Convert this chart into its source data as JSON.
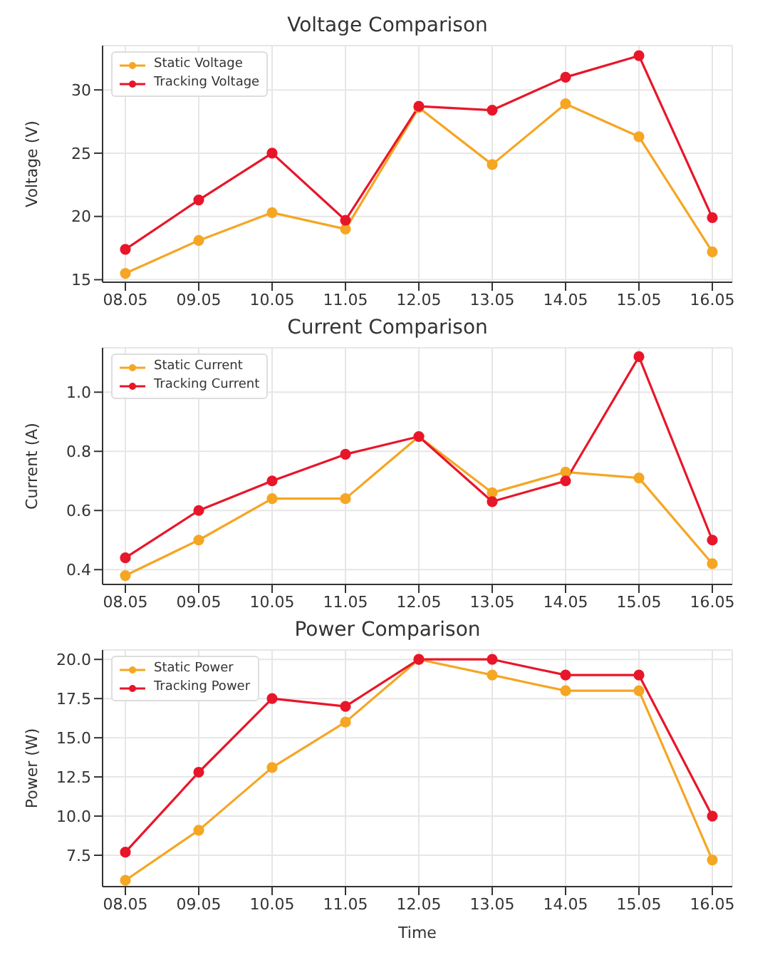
{
  "chart_data": [
    {
      "type": "line",
      "title": "Voltage Comparison",
      "ylabel": "Voltage (V)",
      "categories": [
        "08.05",
        "09.05",
        "10.05",
        "11.05",
        "12.05",
        "13.05",
        "14.05",
        "15.05",
        "16.05"
      ],
      "series": [
        {
          "name": "Static Voltage",
          "color": "#f5a623",
          "values": [
            15.5,
            18.1,
            20.3,
            19.0,
            28.6,
            24.1,
            28.9,
            26.3,
            17.2
          ]
        },
        {
          "name": "Tracking Voltage",
          "color": "#e8162a",
          "values": [
            17.4,
            21.3,
            25.0,
            19.7,
            28.7,
            28.4,
            31.0,
            32.7,
            19.9
          ]
        }
      ],
      "ylim": [
        14.8,
        33.5
      ],
      "yticks": [
        15,
        20,
        25,
        30
      ],
      "grid": true,
      "legend": "top left",
      "marker": "circle"
    },
    {
      "type": "line",
      "title": "Current Comparison",
      "ylabel": "Current (A)",
      "categories": [
        "08.05",
        "09.05",
        "10.05",
        "11.05",
        "12.05",
        "13.05",
        "14.05",
        "15.05",
        "16.05"
      ],
      "series": [
        {
          "name": "Static Current",
          "color": "#f5a623",
          "values": [
            0.38,
            0.5,
            0.64,
            0.64,
            0.85,
            0.66,
            0.73,
            0.71,
            0.42
          ]
        },
        {
          "name": "Tracking Current",
          "color": "#e8162a",
          "values": [
            0.44,
            0.6,
            0.7,
            0.79,
            0.85,
            0.63,
            0.7,
            1.12,
            0.5
          ]
        }
      ],
      "ylim": [
        0.35,
        1.15
      ],
      "yticks": [
        0.4,
        0.6,
        0.8,
        {
          "value": 1,
          "label": "1.0"
        }
      ],
      "grid": true,
      "legend": "top left",
      "marker": "circle"
    },
    {
      "type": "line",
      "title": "Power Comparison",
      "xlabel": "Time",
      "ylabel": "Power (W)",
      "categories": [
        "08.05",
        "09.05",
        "10.05",
        "11.05",
        "12.05",
        "13.05",
        "14.05",
        "15.05",
        "16.05"
      ],
      "series": [
        {
          "name": "Static Power",
          "color": "#f5a623",
          "values": [
            5.9,
            9.1,
            13.1,
            16.0,
            20.0,
            19.0,
            18.0,
            18.0,
            7.2
          ]
        },
        {
          "name": "Tracking Power",
          "color": "#e8162a",
          "values": [
            7.7,
            12.8,
            17.5,
            17.0,
            20.0,
            20.0,
            19.0,
            19.0,
            10.0
          ]
        }
      ],
      "ylim": [
        5.5,
        20.6
      ],
      "yticks": [
        7.5,
        {
          "value": 10,
          "label": "10.0"
        },
        12.5,
        {
          "value": 15,
          "label": "15.0"
        },
        17.5,
        {
          "value": 20,
          "label": "20.0"
        }
      ],
      "grid": true,
      "legend": "top left",
      "marker": "circle"
    }
  ]
}
